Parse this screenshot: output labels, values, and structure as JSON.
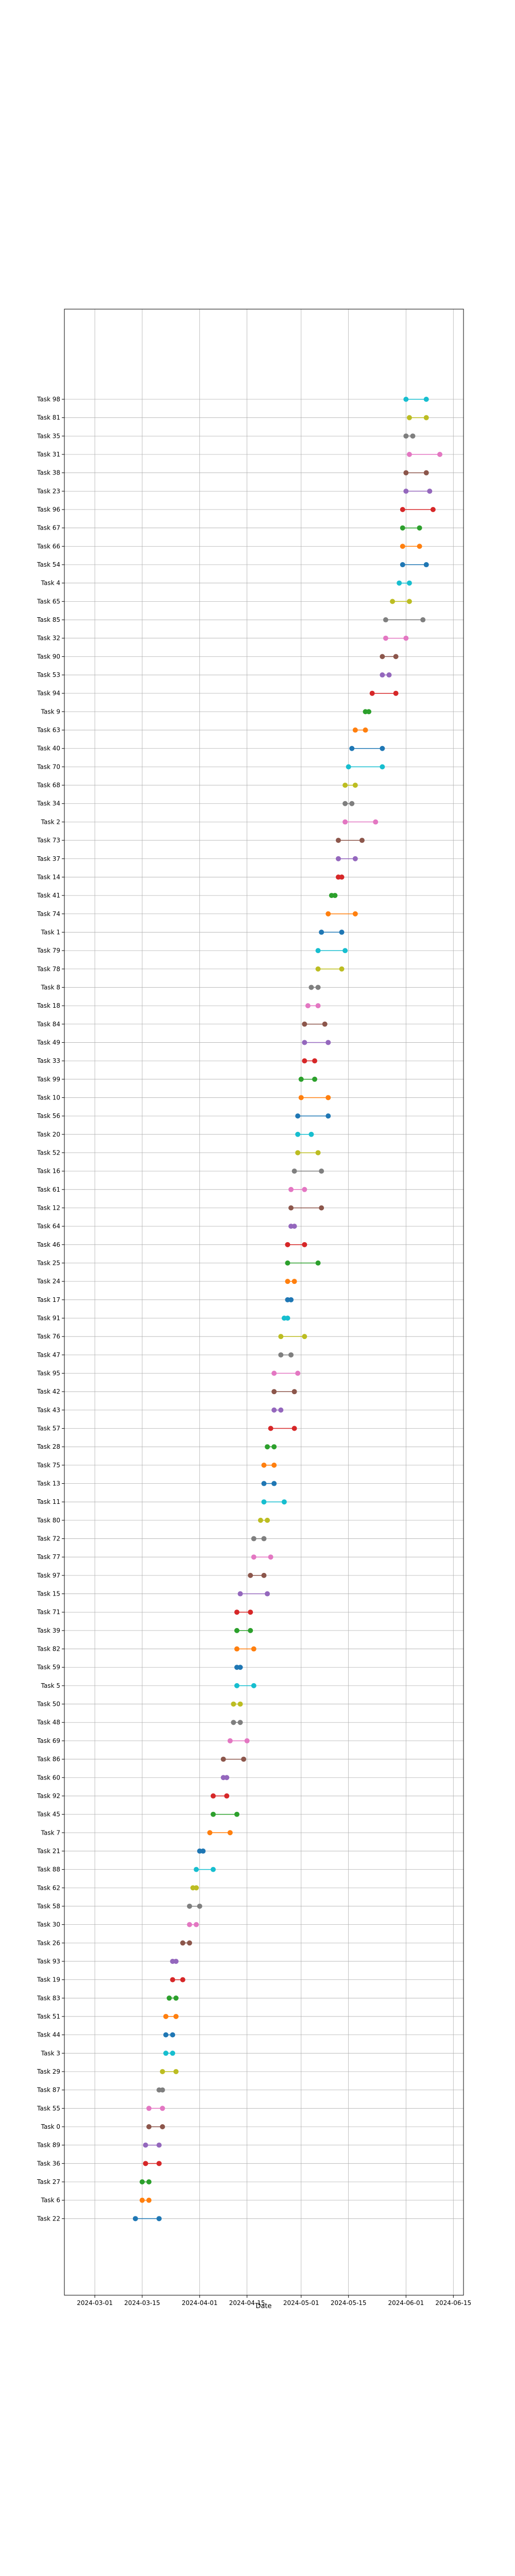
{
  "chart_data": {
    "type": "dumbbell",
    "xlabel": "Date",
    "ylabel": "",
    "title": "",
    "grid": true,
    "x_ticks": [
      "2024-03-01",
      "2024-03-15",
      "2024-04-01",
      "2024-04-15",
      "2024-05-01",
      "2024-05-15",
      "2024-06-01",
      "2024-06-15"
    ],
    "xlim": [
      "2024-02-21",
      "2024-06-18"
    ],
    "tasks": [
      {
        "name": "Task 98",
        "start": "2024-06-01",
        "end": "2024-06-07",
        "color": "#17becf"
      },
      {
        "name": "Task 81",
        "start": "2024-06-02",
        "end": "2024-06-07",
        "color": "#bcbd22"
      },
      {
        "name": "Task 35",
        "start": "2024-06-01",
        "end": "2024-06-03",
        "color": "#7f7f7f"
      },
      {
        "name": "Task 31",
        "start": "2024-06-02",
        "end": "2024-06-11",
        "color": "#e377c2"
      },
      {
        "name": "Task 38",
        "start": "2024-06-01",
        "end": "2024-06-07",
        "color": "#8c564b"
      },
      {
        "name": "Task 23",
        "start": "2024-06-01",
        "end": "2024-06-08",
        "color": "#9467bd"
      },
      {
        "name": "Task 96",
        "start": "2024-05-31",
        "end": "2024-06-09",
        "color": "#d62728"
      },
      {
        "name": "Task 67",
        "start": "2024-05-31",
        "end": "2024-06-05",
        "color": "#2ca02c"
      },
      {
        "name": "Task 66",
        "start": "2024-05-31",
        "end": "2024-06-05",
        "color": "#ff7f0e"
      },
      {
        "name": "Task 54",
        "start": "2024-05-31",
        "end": "2024-06-07",
        "color": "#1f77b4"
      },
      {
        "name": "Task 4",
        "start": "2024-05-30",
        "end": "2024-06-02",
        "color": "#17becf"
      },
      {
        "name": "Task 65",
        "start": "2024-05-28",
        "end": "2024-06-02",
        "color": "#bcbd22"
      },
      {
        "name": "Task 85",
        "start": "2024-05-26",
        "end": "2024-06-06",
        "color": "#7f7f7f"
      },
      {
        "name": "Task 32",
        "start": "2024-05-26",
        "end": "2024-06-01",
        "color": "#e377c2"
      },
      {
        "name": "Task 90",
        "start": "2024-05-25",
        "end": "2024-05-29",
        "color": "#8c564b"
      },
      {
        "name": "Task 53",
        "start": "2024-05-25",
        "end": "2024-05-27",
        "color": "#9467bd"
      },
      {
        "name": "Task 94",
        "start": "2024-05-22",
        "end": "2024-05-29",
        "color": "#d62728"
      },
      {
        "name": "Task 9",
        "start": "2024-05-20",
        "end": "2024-05-21",
        "color": "#2ca02c"
      },
      {
        "name": "Task 63",
        "start": "2024-05-17",
        "end": "2024-05-20",
        "color": "#ff7f0e"
      },
      {
        "name": "Task 40",
        "start": "2024-05-16",
        "end": "2024-05-25",
        "color": "#1f77b4"
      },
      {
        "name": "Task 70",
        "start": "2024-05-15",
        "end": "2024-05-25",
        "color": "#17becf"
      },
      {
        "name": "Task 68",
        "start": "2024-05-14",
        "end": "2024-05-17",
        "color": "#bcbd22"
      },
      {
        "name": "Task 34",
        "start": "2024-05-14",
        "end": "2024-05-16",
        "color": "#7f7f7f"
      },
      {
        "name": "Task 2",
        "start": "2024-05-14",
        "end": "2024-05-23",
        "color": "#e377c2"
      },
      {
        "name": "Task 73",
        "start": "2024-05-12",
        "end": "2024-05-19",
        "color": "#8c564b"
      },
      {
        "name": "Task 37",
        "start": "2024-05-12",
        "end": "2024-05-17",
        "color": "#9467bd"
      },
      {
        "name": "Task 14",
        "start": "2024-05-12",
        "end": "2024-05-13",
        "color": "#d62728"
      },
      {
        "name": "Task 41",
        "start": "2024-05-10",
        "end": "2024-05-11",
        "color": "#2ca02c"
      },
      {
        "name": "Task 74",
        "start": "2024-05-09",
        "end": "2024-05-17",
        "color": "#ff7f0e"
      },
      {
        "name": "Task 1",
        "start": "2024-05-07",
        "end": "2024-05-13",
        "color": "#1f77b4"
      },
      {
        "name": "Task 79",
        "start": "2024-05-06",
        "end": "2024-05-14",
        "color": "#17becf"
      },
      {
        "name": "Task 78",
        "start": "2024-05-06",
        "end": "2024-05-13",
        "color": "#bcbd22"
      },
      {
        "name": "Task 8",
        "start": "2024-05-04",
        "end": "2024-05-06",
        "color": "#7f7f7f"
      },
      {
        "name": "Task 18",
        "start": "2024-05-03",
        "end": "2024-05-06",
        "color": "#e377c2"
      },
      {
        "name": "Task 84",
        "start": "2024-05-02",
        "end": "2024-05-08",
        "color": "#8c564b"
      },
      {
        "name": "Task 49",
        "start": "2024-05-02",
        "end": "2024-05-09",
        "color": "#9467bd"
      },
      {
        "name": "Task 33",
        "start": "2024-05-02",
        "end": "2024-05-05",
        "color": "#d62728"
      },
      {
        "name": "Task 99",
        "start": "2024-05-01",
        "end": "2024-05-05",
        "color": "#2ca02c"
      },
      {
        "name": "Task 10",
        "start": "2024-05-01",
        "end": "2024-05-09",
        "color": "#ff7f0e"
      },
      {
        "name": "Task 56",
        "start": "2024-04-30",
        "end": "2024-05-09",
        "color": "#1f77b4"
      },
      {
        "name": "Task 20",
        "start": "2024-04-30",
        "end": "2024-05-04",
        "color": "#17becf"
      },
      {
        "name": "Task 52",
        "start": "2024-04-30",
        "end": "2024-05-06",
        "color": "#bcbd22"
      },
      {
        "name": "Task 16",
        "start": "2024-04-29",
        "end": "2024-05-07",
        "color": "#7f7f7f"
      },
      {
        "name": "Task 61",
        "start": "2024-04-28",
        "end": "2024-05-02",
        "color": "#e377c2"
      },
      {
        "name": "Task 12",
        "start": "2024-04-28",
        "end": "2024-05-07",
        "color": "#8c564b"
      },
      {
        "name": "Task 64",
        "start": "2024-04-28",
        "end": "2024-04-29",
        "color": "#9467bd"
      },
      {
        "name": "Task 46",
        "start": "2024-04-27",
        "end": "2024-05-02",
        "color": "#d62728"
      },
      {
        "name": "Task 25",
        "start": "2024-04-27",
        "end": "2024-05-06",
        "color": "#2ca02c"
      },
      {
        "name": "Task 24",
        "start": "2024-04-27",
        "end": "2024-04-29",
        "color": "#ff7f0e"
      },
      {
        "name": "Task 17",
        "start": "2024-04-27",
        "end": "2024-04-28",
        "color": "#1f77b4"
      },
      {
        "name": "Task 91",
        "start": "2024-04-26",
        "end": "2024-04-27",
        "color": "#17becf"
      },
      {
        "name": "Task 76",
        "start": "2024-04-25",
        "end": "2024-05-02",
        "color": "#bcbd22"
      },
      {
        "name": "Task 47",
        "start": "2024-04-25",
        "end": "2024-04-28",
        "color": "#7f7f7f"
      },
      {
        "name": "Task 95",
        "start": "2024-04-23",
        "end": "2024-04-30",
        "color": "#e377c2"
      },
      {
        "name": "Task 42",
        "start": "2024-04-23",
        "end": "2024-04-29",
        "color": "#8c564b"
      },
      {
        "name": "Task 43",
        "start": "2024-04-23",
        "end": "2024-04-25",
        "color": "#9467bd"
      },
      {
        "name": "Task 57",
        "start": "2024-04-22",
        "end": "2024-04-29",
        "color": "#d62728"
      },
      {
        "name": "Task 28",
        "start": "2024-04-21",
        "end": "2024-04-23",
        "color": "#2ca02c"
      },
      {
        "name": "Task 75",
        "start": "2024-04-20",
        "end": "2024-04-23",
        "color": "#ff7f0e"
      },
      {
        "name": "Task 13",
        "start": "2024-04-20",
        "end": "2024-04-23",
        "color": "#1f77b4"
      },
      {
        "name": "Task 11",
        "start": "2024-04-20",
        "end": "2024-04-26",
        "color": "#17becf"
      },
      {
        "name": "Task 80",
        "start": "2024-04-19",
        "end": "2024-04-21",
        "color": "#bcbd22"
      },
      {
        "name": "Task 72",
        "start": "2024-04-17",
        "end": "2024-04-20",
        "color": "#7f7f7f"
      },
      {
        "name": "Task 77",
        "start": "2024-04-17",
        "end": "2024-04-22",
        "color": "#e377c2"
      },
      {
        "name": "Task 97",
        "start": "2024-04-16",
        "end": "2024-04-20",
        "color": "#8c564b"
      },
      {
        "name": "Task 15",
        "start": "2024-04-13",
        "end": "2024-04-21",
        "color": "#9467bd"
      },
      {
        "name": "Task 71",
        "start": "2024-04-12",
        "end": "2024-04-16",
        "color": "#d62728"
      },
      {
        "name": "Task 39",
        "start": "2024-04-12",
        "end": "2024-04-16",
        "color": "#2ca02c"
      },
      {
        "name": "Task 82",
        "start": "2024-04-12",
        "end": "2024-04-17",
        "color": "#ff7f0e"
      },
      {
        "name": "Task 59",
        "start": "2024-04-12",
        "end": "2024-04-13",
        "color": "#1f77b4"
      },
      {
        "name": "Task 5",
        "start": "2024-04-12",
        "end": "2024-04-17",
        "color": "#17becf"
      },
      {
        "name": "Task 50",
        "start": "2024-04-11",
        "end": "2024-04-13",
        "color": "#bcbd22"
      },
      {
        "name": "Task 48",
        "start": "2024-04-11",
        "end": "2024-04-13",
        "color": "#7f7f7f"
      },
      {
        "name": "Task 69",
        "start": "2024-04-10",
        "end": "2024-04-15",
        "color": "#e377c2"
      },
      {
        "name": "Task 86",
        "start": "2024-04-08",
        "end": "2024-04-14",
        "color": "#8c564b"
      },
      {
        "name": "Task 60",
        "start": "2024-04-08",
        "end": "2024-04-09",
        "color": "#9467bd"
      },
      {
        "name": "Task 92",
        "start": "2024-04-05",
        "end": "2024-04-09",
        "color": "#d62728"
      },
      {
        "name": "Task 45",
        "start": "2024-04-05",
        "end": "2024-04-12",
        "color": "#2ca02c"
      },
      {
        "name": "Task 7",
        "start": "2024-04-04",
        "end": "2024-04-10",
        "color": "#ff7f0e"
      },
      {
        "name": "Task 21",
        "start": "2024-04-01",
        "end": "2024-04-02",
        "color": "#1f77b4"
      },
      {
        "name": "Task 88",
        "start": "2024-03-31",
        "end": "2024-04-05",
        "color": "#17becf"
      },
      {
        "name": "Task 62",
        "start": "2024-03-30",
        "end": "2024-03-31",
        "color": "#bcbd22"
      },
      {
        "name": "Task 58",
        "start": "2024-03-29",
        "end": "2024-04-01",
        "color": "#7f7f7f"
      },
      {
        "name": "Task 30",
        "start": "2024-03-29",
        "end": "2024-03-31",
        "color": "#e377c2"
      },
      {
        "name": "Task 26",
        "start": "2024-03-27",
        "end": "2024-03-29",
        "color": "#8c564b"
      },
      {
        "name": "Task 93",
        "start": "2024-03-24",
        "end": "2024-03-25",
        "color": "#9467bd"
      },
      {
        "name": "Task 19",
        "start": "2024-03-24",
        "end": "2024-03-27",
        "color": "#d62728"
      },
      {
        "name": "Task 83",
        "start": "2024-03-23",
        "end": "2024-03-25",
        "color": "#2ca02c"
      },
      {
        "name": "Task 51",
        "start": "2024-03-22",
        "end": "2024-03-25",
        "color": "#ff7f0e"
      },
      {
        "name": "Task 44",
        "start": "2024-03-22",
        "end": "2024-03-24",
        "color": "#1f77b4"
      },
      {
        "name": "Task 3",
        "start": "2024-03-22",
        "end": "2024-03-24",
        "color": "#17becf"
      },
      {
        "name": "Task 29",
        "start": "2024-03-21",
        "end": "2024-03-25",
        "color": "#bcbd22"
      },
      {
        "name": "Task 87",
        "start": "2024-03-20",
        "end": "2024-03-21",
        "color": "#7f7f7f"
      },
      {
        "name": "Task 55",
        "start": "2024-03-17",
        "end": "2024-03-21",
        "color": "#e377c2"
      },
      {
        "name": "Task 0",
        "start": "2024-03-17",
        "end": "2024-03-21",
        "color": "#8c564b"
      },
      {
        "name": "Task 89",
        "start": "2024-03-16",
        "end": "2024-03-20",
        "color": "#9467bd"
      },
      {
        "name": "Task 36",
        "start": "2024-03-16",
        "end": "2024-03-20",
        "color": "#d62728"
      },
      {
        "name": "Task 27",
        "start": "2024-03-15",
        "end": "2024-03-17",
        "color": "#2ca02c"
      },
      {
        "name": "Task 6",
        "start": "2024-03-15",
        "end": "2024-03-17",
        "color": "#ff7f0e"
      },
      {
        "name": "Task 22",
        "start": "2024-03-13",
        "end": "2024-03-20",
        "color": "#1f77b4"
      }
    ]
  }
}
